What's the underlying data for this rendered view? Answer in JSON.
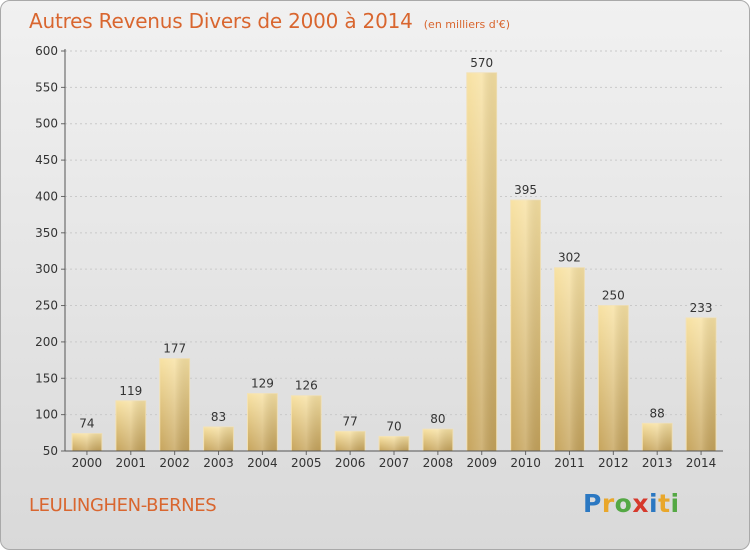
{
  "title": "Autres Revenus Divers de 2000 à 2014",
  "subtitle": "(en milliers d'€)",
  "commune": "LEULINGHEN-BERNES",
  "logo": {
    "letters": [
      "P",
      "r",
      "o",
      "x",
      "i",
      "t",
      "i"
    ]
  },
  "colors": {
    "title": "#d9662f",
    "bar_light": "#f5dc9a",
    "bar_dark": "#c9a75e",
    "grid": "#c8c8c8"
  },
  "chart_data": {
    "type": "bar",
    "categories": [
      "2000",
      "2001",
      "2002",
      "2003",
      "2004",
      "2005",
      "2006",
      "2007",
      "2008",
      "2009",
      "2010",
      "2011",
      "2012",
      "2013",
      "2014"
    ],
    "values": [
      74,
      119,
      177,
      83,
      129,
      126,
      77,
      70,
      80,
      570,
      395,
      302,
      250,
      88,
      233
    ],
    "title": "Autres Revenus Divers de 2000 à 2014",
    "xlabel": "",
    "ylabel": "",
    "ylim": [
      50,
      600
    ],
    "yticks": [
      50,
      100,
      150,
      200,
      250,
      300,
      350,
      400,
      450,
      500,
      550,
      600
    ],
    "grid": true,
    "data_labels": true
  }
}
